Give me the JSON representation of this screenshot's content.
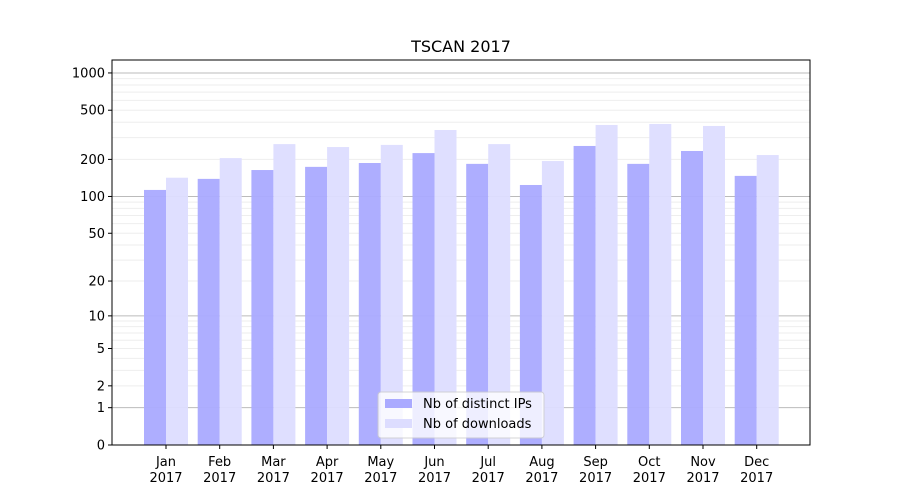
{
  "chart_data": {
    "type": "bar",
    "title": "TSCAN 2017",
    "xlabel": "",
    "ylabel": "",
    "yscale": "log10(1+y)",
    "ylim": [
      0,
      1300
    ],
    "yticks": [
      0,
      1,
      2,
      5,
      10,
      20,
      50,
      100,
      200,
      500,
      1000
    ],
    "categories": [
      "Jan\n2017",
      "Feb\n2017",
      "Mar\n2017",
      "Apr\n2017",
      "May\n2017",
      "Jun\n2017",
      "Jul\n2017",
      "Aug\n2017",
      "Sep\n2017",
      "Oct\n2017",
      "Nov\n2017",
      "Dec\n2017"
    ],
    "series": [
      {
        "name": "Nb of distinct IPs",
        "color": "#aaaaff",
        "values": [
          113,
          139,
          164,
          174,
          187,
          225,
          184,
          124,
          257,
          184,
          234,
          147
        ]
      },
      {
        "name": "Nb of downloads",
        "color": "#ddddff",
        "values": [
          142,
          205,
          266,
          252,
          262,
          346,
          266,
          194,
          380,
          387,
          373,
          217
        ]
      }
    ],
    "grid": true,
    "legend": "bottom-center"
  }
}
